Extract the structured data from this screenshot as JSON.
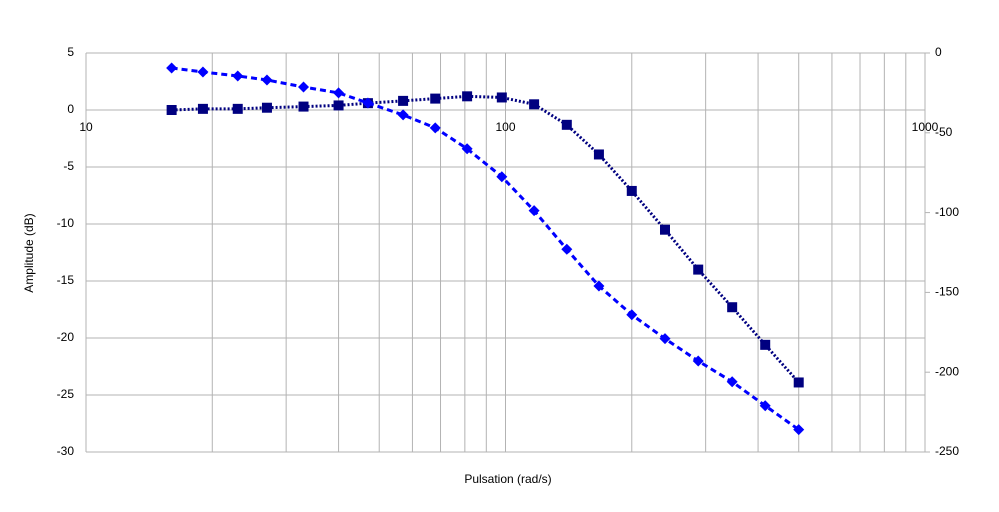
{
  "chart_data": {
    "type": "line",
    "x_label": "Pulsation (rad/s)",
    "y_label": "Amplitude (dB)",
    "x_log": true,
    "grid": true,
    "xlim": [
      10,
      1000
    ],
    "xticks": [
      10,
      100,
      1000
    ],
    "x_minor_ticks": [
      20,
      30,
      40,
      50,
      60,
      70,
      80,
      90,
      200,
      300,
      400,
      500,
      600,
      700,
      800,
      900
    ],
    "ylim": [
      -30,
      5
    ],
    "yticks": [
      5,
      0,
      -5,
      -10,
      -15,
      -20,
      -25,
      -30
    ],
    "y2lim": [
      -250,
      0
    ],
    "y2ticks": [
      0,
      -50,
      -100,
      -150,
      -200,
      -250
    ],
    "x": [
      16,
      19,
      23,
      27,
      33,
      40,
      47,
      57,
      68,
      81,
      98,
      117,
      140,
      167,
      200,
      240,
      288,
      347,
      416,
      500
    ],
    "series": [
      {
        "color": "#000080",
        "marker": "square",
        "dash": "dotted",
        "values": [
          0.0,
          0.1,
          0.1,
          0.2,
          0.3,
          0.4,
          0.6,
          0.8,
          1.0,
          1.2,
          1.1,
          0.5,
          -1.3,
          -3.9,
          -7.1,
          -10.5,
          -14.0,
          -17.3,
          -20.6,
          -23.9
        ]
      },
      {
        "color": "#0000ff",
        "marker": "diamond",
        "dash": "dashed",
        "axis": "y2",
        "values": [
          -9.4,
          -11.9,
          -14.4,
          -16.9,
          -21.3,
          -25,
          -31.3,
          -38.8,
          -46.9,
          -60,
          -77.5,
          -98.8,
          -123,
          -146,
          -164,
          -179,
          -193,
          -206,
          -221,
          -236
        ]
      }
    ]
  }
}
